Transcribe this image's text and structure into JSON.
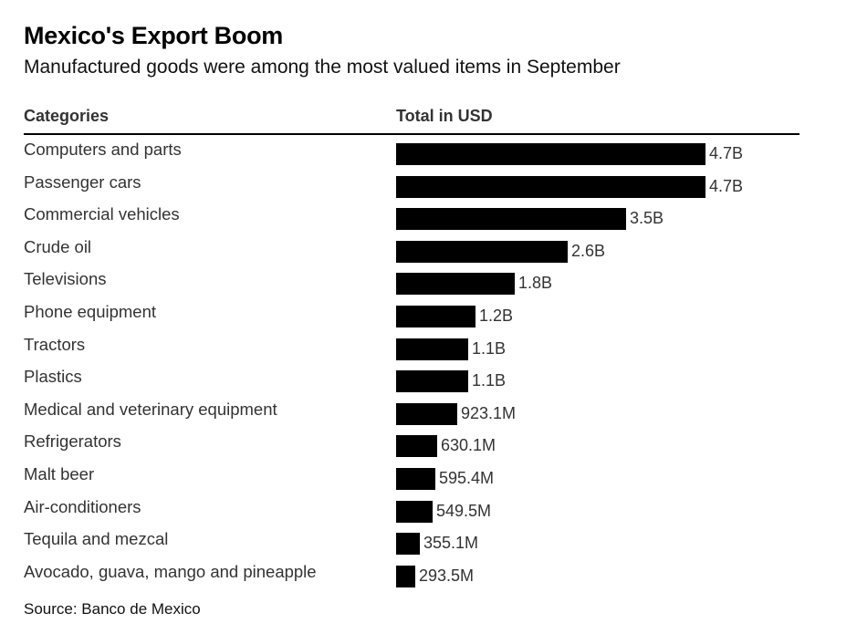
{
  "title": "Mexico's Export Boom",
  "subtitle": "Manufactured goods were among the most valued items in September",
  "headers": {
    "categories": "Categories",
    "total": "Total in USD"
  },
  "source": "Source: Banco de Mexico",
  "colors": {
    "bar": "#000000",
    "text": "#333333",
    "background": "#ffffff"
  },
  "chart_data": {
    "type": "bar",
    "orientation": "horizontal",
    "title": "Mexico's Export Boom",
    "subtitle": "Manufactured goods were among the most valued items in September",
    "xlabel": "Total in USD",
    "ylabel": "Categories",
    "unit": "USD",
    "categories": [
      "Computers and parts",
      "Passenger cars",
      "Commercial vehicles",
      "Crude oil",
      "Televisions",
      "Phone equipment",
      "Tractors",
      "Plastics",
      "Medical and veterinary equipment",
      "Refrigerators",
      "Malt beer",
      "Air-conditioners",
      "Tequila and mezcal",
      "Avocado, guava, mango and pineapple"
    ],
    "values": [
      4700000000.0,
      4700000000.0,
      3500000000.0,
      2600000000.0,
      1800000000.0,
      1200000000.0,
      1100000000.0,
      1100000000.0,
      923100000.0,
      630100000.0,
      595400000.0,
      549500000.0,
      355100000.0,
      293500000.0
    ],
    "value_labels": [
      "4.7B",
      "4.7B",
      "3.5B",
      "2.6B",
      "1.8B",
      "1.2B",
      "1.1B",
      "1.1B",
      "923.1M",
      "630.1M",
      "595.4M",
      "549.5M",
      "355.1M",
      "293.5M"
    ],
    "xlim": [
      0,
      4700000000.0
    ],
    "grid": false,
    "legend": "none"
  }
}
